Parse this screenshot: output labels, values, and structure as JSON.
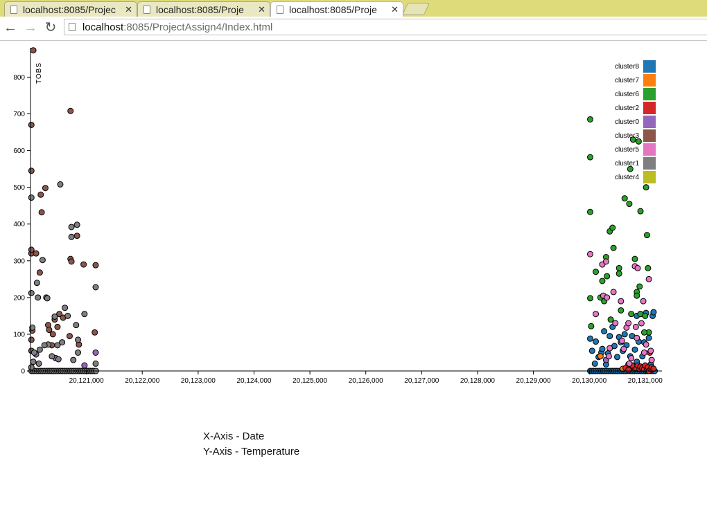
{
  "tabs": [
    {
      "title": "localhost:8085/Projec",
      "active": false
    },
    {
      "title": "localhost:8085/Proje",
      "active": false
    },
    {
      "title": "localhost:8085/Proje",
      "active": true
    }
  ],
  "toolbar": {
    "url_host": "localhost",
    "url_path": ":8085/ProjectAssign4/Index.html",
    "back_icon": "arrow-left-icon",
    "forward_icon": "arrow-right-icon",
    "reload_icon": "reload-icon"
  },
  "notes": {
    "x_axis": "X-Axis - Date",
    "y_axis": "Y-Axis - Temperature"
  },
  "chart_data": {
    "type": "scatter",
    "title": "",
    "xlabel": "",
    "ylabel": "TOBS",
    "xlim": [
      20120000,
      20131300
    ],
    "ylim": [
      0,
      880
    ],
    "x_ticks": [
      20121000,
      20122000,
      20123000,
      20124000,
      20125000,
      20126000,
      20127000,
      20128000,
      20129000,
      20130000,
      20131000
    ],
    "x_tick_labels": [
      "20,121,000",
      "20,122,000",
      "20,123,000",
      "20,124,000",
      "20,125,000",
      "20,126,000",
      "20,127,000",
      "20,128,000",
      "20,129,000",
      "20,130,000",
      "20,131,000"
    ],
    "y_ticks": [
      0,
      100,
      200,
      300,
      400,
      500,
      600,
      700,
      800
    ],
    "legend_position": "top-right",
    "series": [
      {
        "name": "cluster8",
        "color": "#1f77b4",
        "points": [
          [
            20130016,
            88
          ],
          [
            20130050,
            55
          ],
          [
            20130116,
            80
          ],
          [
            20130166,
            38
          ],
          [
            20130216,
            50
          ],
          [
            20130233,
            60
          ],
          [
            20130266,
            108
          ],
          [
            20130300,
            18
          ],
          [
            20130333,
            48
          ],
          [
            20130366,
            95
          ],
          [
            20130416,
            120
          ],
          [
            20130450,
            68
          ],
          [
            20130500,
            38
          ],
          [
            20130533,
            92
          ],
          [
            20130566,
            78
          ],
          [
            20130600,
            55
          ],
          [
            20130633,
            100
          ],
          [
            20130666,
            70
          ],
          [
            20130700,
            18
          ],
          [
            20130733,
            40
          ],
          [
            20130766,
            95
          ],
          [
            20130816,
            58
          ],
          [
            20130850,
            25
          ],
          [
            20130883,
            80
          ],
          [
            20130916,
            155
          ],
          [
            20130950,
            40
          ],
          [
            20130983,
            78
          ],
          [
            20131016,
            158
          ],
          [
            20131066,
            90
          ],
          [
            20131133,
            150
          ],
          [
            20131150,
            160
          ],
          [
            20131100,
            18
          ],
          [
            20130100,
            20
          ],
          [
            20130850,
            150
          ]
        ]
      },
      {
        "name": "cluster7",
        "color": "#ff7f0e",
        "points": [
          [
            20130200,
            40
          ],
          [
            20130600,
            6
          ],
          [
            20131050,
            10
          ],
          [
            20131133,
            5
          ]
        ]
      },
      {
        "name": "cluster6",
        "color": "#2ca02c",
        "points": [
          [
            20130016,
            685
          ],
          [
            20130016,
            582
          ],
          [
            20130016,
            433
          ],
          [
            20130016,
            198
          ],
          [
            20130033,
            122
          ],
          [
            20130116,
            270
          ],
          [
            20130233,
            245
          ],
          [
            20130266,
            190
          ],
          [
            20130300,
            310
          ],
          [
            20130316,
            258
          ],
          [
            20130366,
            380
          ],
          [
            20130416,
            390
          ],
          [
            20130433,
            335
          ],
          [
            20130533,
            280
          ],
          [
            20130533,
            265
          ],
          [
            20130566,
            165
          ],
          [
            20130633,
            470
          ],
          [
            20130716,
            455
          ],
          [
            20130750,
            155
          ],
          [
            20130850,
            215
          ],
          [
            20130850,
            205
          ],
          [
            20130900,
            230
          ],
          [
            20130916,
            435
          ],
          [
            20130916,
            155
          ],
          [
            20131000,
            150
          ],
          [
            20131016,
            500
          ],
          [
            20131033,
            370
          ],
          [
            20131050,
            280
          ],
          [
            20131066,
            105
          ],
          [
            20130783,
            630
          ],
          [
            20130733,
            550
          ],
          [
            20130883,
            625
          ],
          [
            20130816,
            305
          ],
          [
            20130383,
            140
          ],
          [
            20130200,
            200
          ],
          [
            20130983,
            105
          ]
        ]
      },
      {
        "name": "cluster2",
        "color": "#d62728",
        "points": [
          [
            20130816,
            5
          ],
          [
            20130833,
            8
          ],
          [
            20130866,
            15
          ],
          [
            20130900,
            5
          ],
          [
            20130916,
            12
          ],
          [
            20130950,
            8
          ],
          [
            20130983,
            5
          ],
          [
            20131000,
            15
          ],
          [
            20131033,
            3
          ],
          [
            20131050,
            10
          ],
          [
            20131066,
            0
          ],
          [
            20131100,
            5
          ],
          [
            20131116,
            10
          ],
          [
            20131150,
            6
          ],
          [
            20130650,
            8
          ],
          [
            20130700,
            3
          ],
          [
            20130766,
            15
          ],
          [
            20131083,
            50
          ]
        ]
      },
      {
        "name": "cluster0",
        "color": "#9467bd",
        "points": [
          [
            20120100,
            45
          ],
          [
            20120450,
            35
          ],
          [
            20120966,
            15
          ],
          [
            20121166,
            50
          ],
          [
            20130300,
            30
          ]
        ]
      },
      {
        "name": "cluster3",
        "color": "#8c564b",
        "points": [
          [
            20120050,
            873
          ],
          [
            20120016,
            670
          ],
          [
            20120016,
            545
          ],
          [
            20120016,
            320
          ],
          [
            20120033,
            110
          ],
          [
            20120016,
            85
          ],
          [
            20120016,
            55
          ],
          [
            20120100,
            320
          ],
          [
            20120166,
            268
          ],
          [
            20120183,
            480
          ],
          [
            20120200,
            432
          ],
          [
            20120266,
            498
          ],
          [
            20120316,
            125
          ],
          [
            20120333,
            112
          ],
          [
            20120400,
            100
          ],
          [
            20120433,
            140
          ],
          [
            20120483,
            120
          ],
          [
            20120516,
            155
          ],
          [
            20120583,
            145
          ],
          [
            20120716,
            708
          ],
          [
            20120716,
            305
          ],
          [
            20120733,
            298
          ],
          [
            20120833,
            368
          ],
          [
            20120866,
            72
          ],
          [
            20120950,
            290
          ],
          [
            20121166,
            288
          ],
          [
            20121150,
            105
          ],
          [
            20120016,
            330
          ],
          [
            20120700,
            95
          ],
          [
            20120383,
            70
          ]
        ]
      },
      {
        "name": "cluster5",
        "color": "#e377c2",
        "points": [
          [
            20130016,
            318
          ],
          [
            20130116,
            155
          ],
          [
            20130233,
            290
          ],
          [
            20130300,
            298
          ],
          [
            20130250,
            205
          ],
          [
            20130316,
            200
          ],
          [
            20130366,
            62
          ],
          [
            20130433,
            215
          ],
          [
            20130466,
            130
          ],
          [
            20130566,
            190
          ],
          [
            20130583,
            82
          ],
          [
            20130666,
            118
          ],
          [
            20130700,
            130
          ],
          [
            20130750,
            35
          ],
          [
            20130816,
            285
          ],
          [
            20130833,
            120
          ],
          [
            20130850,
            90
          ],
          [
            20130866,
            280
          ],
          [
            20130933,
            130
          ],
          [
            20130966,
            190
          ],
          [
            20130983,
            50
          ],
          [
            20131016,
            72
          ],
          [
            20131066,
            250
          ],
          [
            20131100,
            55
          ],
          [
            20131116,
            30
          ],
          [
            20130350,
            40
          ],
          [
            20130616,
            60
          ],
          [
            20130716,
            20
          ]
        ]
      },
      {
        "name": "cluster1",
        "color": "#7f7f7f",
        "points": [
          [
            20120016,
            472
          ],
          [
            20120016,
            212
          ],
          [
            20120033,
            118
          ],
          [
            20120066,
            50
          ],
          [
            20120116,
            240
          ],
          [
            20120133,
            200
          ],
          [
            20120150,
            20
          ],
          [
            20120166,
            58
          ],
          [
            20120216,
            302
          ],
          [
            20120283,
            200
          ],
          [
            20120300,
            198
          ],
          [
            20120316,
            72
          ],
          [
            20120383,
            40
          ],
          [
            20120433,
            148
          ],
          [
            20120483,
            70
          ],
          [
            20120533,
            508
          ],
          [
            20120566,
            78
          ],
          [
            20120616,
            172
          ],
          [
            20120666,
            150
          ],
          [
            20120733,
            392
          ],
          [
            20120733,
            365
          ],
          [
            20120833,
            398
          ],
          [
            20120816,
            125
          ],
          [
            20120850,
            85
          ],
          [
            20120850,
            50
          ],
          [
            20120966,
            155
          ],
          [
            20121166,
            228
          ],
          [
            20121166,
            20
          ],
          [
            20120016,
            10
          ],
          [
            20120050,
            25
          ],
          [
            20120250,
            70
          ],
          [
            20120500,
            32
          ],
          [
            20120766,
            30
          ]
        ]
      },
      {
        "name": "cluster4",
        "color": "#bcbd22",
        "points": []
      }
    ],
    "dense_bottom_rows": [
      {
        "color": "#7f7f7f",
        "x_start": 20120016,
        "x_end": 20121183,
        "step": 33,
        "y": 0
      },
      {
        "color": "#1f77b4",
        "x_start": 20130016,
        "x_end": 20131183,
        "step": 33,
        "y": 0
      }
    ]
  }
}
